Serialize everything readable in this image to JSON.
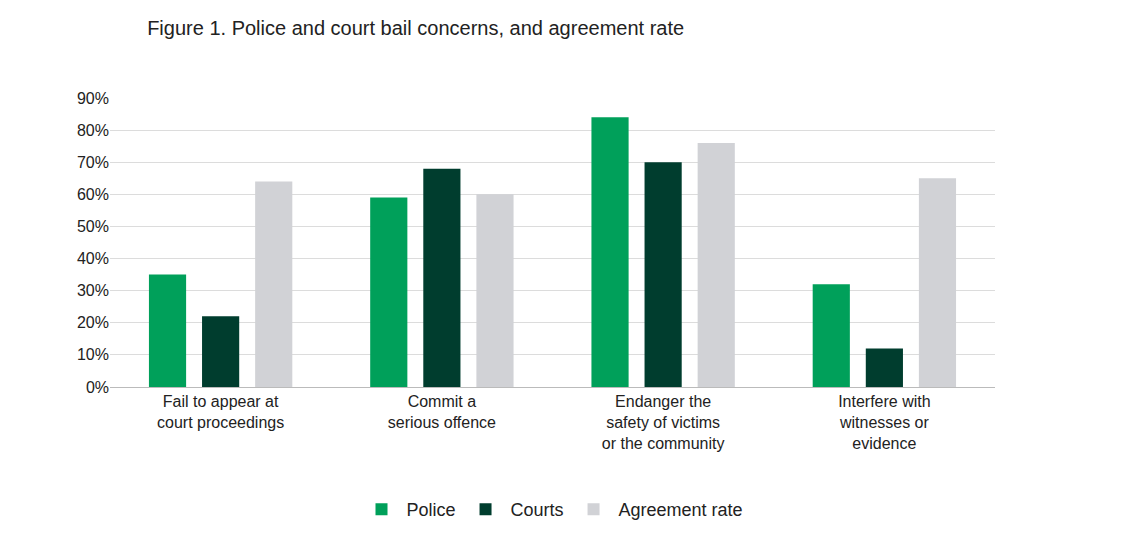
{
  "chart_data": {
    "type": "bar",
    "title": "Figure 1. Police and court bail concerns, and agreement rate",
    "categories": [
      "Fail to appear at\ncourt proceedings",
      "Commit a\nserious offence",
      "Endanger the\nsafety of victims\nor the community",
      "Interfere with\nwitnesses or\nevidence"
    ],
    "series": [
      {
        "name": "Police",
        "color": "#00a05a",
        "values": [
          35,
          59,
          84,
          32
        ]
      },
      {
        "name": "Courts",
        "color": "#003d2e",
        "values": [
          22,
          68,
          70,
          12
        ]
      },
      {
        "name": "Agreement rate",
        "color": "#d1d2d6",
        "values": [
          64,
          60,
          76,
          65
        ]
      }
    ],
    "ylim": [
      0,
      90
    ],
    "yticks": [
      {
        "value": 0,
        "label": "0%"
      },
      {
        "value": 10,
        "label": "10%"
      },
      {
        "value": 20,
        "label": "20%"
      },
      {
        "value": 30,
        "label": "30%"
      },
      {
        "value": 40,
        "label": "40%"
      },
      {
        "value": 50,
        "label": "50%"
      },
      {
        "value": 60,
        "label": "60%"
      },
      {
        "value": 70,
        "label": "70%"
      },
      {
        "value": 80,
        "label": "80%"
      },
      {
        "value": 90,
        "label": "90%"
      }
    ],
    "grid": true,
    "legend": "bottom"
  }
}
